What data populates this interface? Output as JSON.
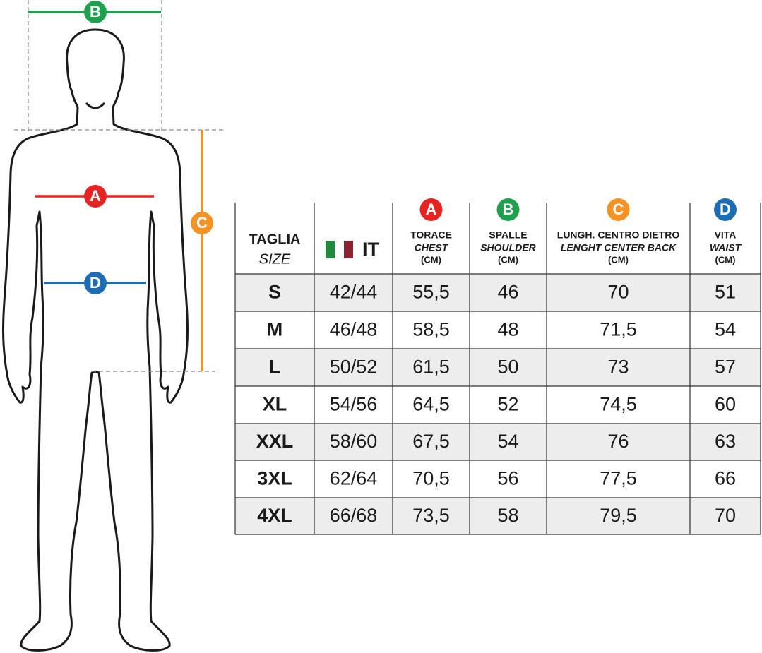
{
  "diagram": {
    "markers": [
      {
        "label": "A",
        "color": "#e52421"
      },
      {
        "label": "B",
        "color": "#1ea04d"
      },
      {
        "label": "C",
        "color": "#f39325"
      },
      {
        "label": "D",
        "color": "#1d6db5"
      }
    ]
  },
  "table": {
    "columns": [
      {
        "title": "TAGLIA",
        "subtitle": "SIZE"
      },
      {
        "title": "IT",
        "flag": [
          "#1e8a3c",
          "#ffffff",
          "#8a2230"
        ]
      },
      {
        "marker": "A",
        "color": "#e52421",
        "title": "TORACE",
        "subtitle": "CHEST",
        "unit": "(CM)"
      },
      {
        "marker": "B",
        "color": "#1ea04d",
        "title": "SPALLE",
        "subtitle": "SHOULDER",
        "unit": "(CM)"
      },
      {
        "marker": "C",
        "color": "#f39325",
        "title": "LUNGH. CENTRO DIETRO",
        "subtitle": "LENGHT CENTER BACK",
        "unit": "(CM)"
      },
      {
        "marker": "D",
        "color": "#1d6db5",
        "title": "VITA",
        "subtitle": "WAIST",
        "unit": "(CM)"
      }
    ],
    "rows": [
      [
        "S",
        "42/44",
        "55,5",
        "46",
        "70",
        "51"
      ],
      [
        "M",
        "46/48",
        "58,5",
        "48",
        "71,5",
        "54"
      ],
      [
        "L",
        "50/52",
        "61,5",
        "50",
        "73",
        "57"
      ],
      [
        "XL",
        "54/56",
        "64,5",
        "52",
        "74,5",
        "60"
      ],
      [
        "XXL",
        "58/60",
        "67,5",
        "54",
        "76",
        "63"
      ],
      [
        "3XL",
        "62/64",
        "70,5",
        "56",
        "77,5",
        "66"
      ],
      [
        "4XL",
        "66/68",
        "73,5",
        "58",
        "79,5",
        "70"
      ]
    ]
  }
}
